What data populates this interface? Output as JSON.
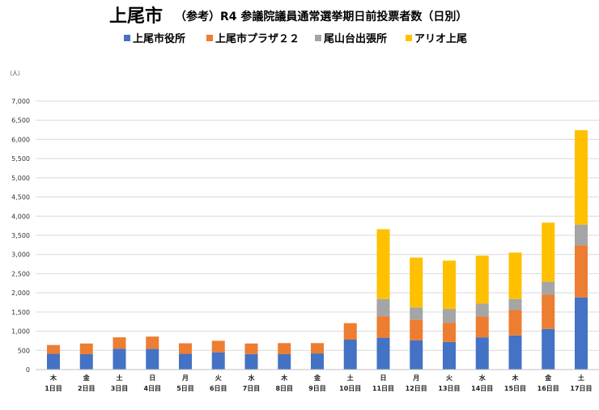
{
  "colors": {
    "s0": "#4472c4",
    "s1": "#ed7d31",
    "s2": "#a5a5a5",
    "s3": "#ffc000"
  },
  "chart_data": {
    "type": "bar",
    "stacked": true,
    "title": "上尾市",
    "subtitle": "（参考）R4 参議院議員通常選挙期日前投票者数（日別）",
    "unit": "（人）",
    "ylim": [
      0,
      7000
    ],
    "yticks": [
      "0",
      "500",
      "1,000",
      "1,500",
      "2,000",
      "2,500",
      "3,000",
      "3,500",
      "4,000",
      "4,500",
      "5,000",
      "5,500",
      "6,000",
      "6,500",
      "7,000"
    ],
    "ytick_values": [
      0,
      500,
      1000,
      1500,
      2000,
      2500,
      3000,
      3500,
      4000,
      4500,
      5000,
      5500,
      6000,
      6500,
      7000
    ],
    "grid": true,
    "legend_position": "top",
    "categories": [
      {
        "day": "木",
        "label": "1日目"
      },
      {
        "day": "金",
        "label": "2日目"
      },
      {
        "day": "土",
        "label": "3日目"
      },
      {
        "day": "日",
        "label": "4日目"
      },
      {
        "day": "月",
        "label": "5日目"
      },
      {
        "day": "火",
        "label": "6日目"
      },
      {
        "day": "水",
        "label": "7日目"
      },
      {
        "day": "木",
        "label": "8日目"
      },
      {
        "day": "金",
        "label": "9日目"
      },
      {
        "day": "土",
        "label": "10日目"
      },
      {
        "day": "日",
        "label": "11日目"
      },
      {
        "day": "月",
        "label": "12日目"
      },
      {
        "day": "火",
        "label": "13日目"
      },
      {
        "day": "水",
        "label": "14日目"
      },
      {
        "day": "木",
        "label": "15日目"
      },
      {
        "day": "金",
        "label": "16日目"
      },
      {
        "day": "土",
        "label": "17日目"
      }
    ],
    "series": [
      {
        "name": "上尾市役所",
        "values": [
          410,
          400,
          545,
          540,
          410,
          450,
          405,
          400,
          420,
          780,
          830,
          760,
          720,
          840,
          890,
          1060,
          1880
        ]
      },
      {
        "name": "上尾市プラザ２２",
        "values": [
          230,
          280,
          295,
          320,
          275,
          300,
          275,
          290,
          270,
          430,
          560,
          540,
          500,
          540,
          660,
          890,
          1360
        ]
      },
      {
        "name": "尾山台出張所",
        "values": [
          0,
          0,
          0,
          0,
          0,
          0,
          0,
          0,
          0,
          0,
          450,
          320,
          360,
          340,
          290,
          340,
          540
        ]
      },
      {
        "name": "アリオ上尾",
        "values": [
          0,
          0,
          0,
          0,
          0,
          0,
          0,
          0,
          0,
          0,
          1820,
          1300,
          1260,
          1250,
          1210,
          1540,
          2460
        ]
      }
    ]
  }
}
